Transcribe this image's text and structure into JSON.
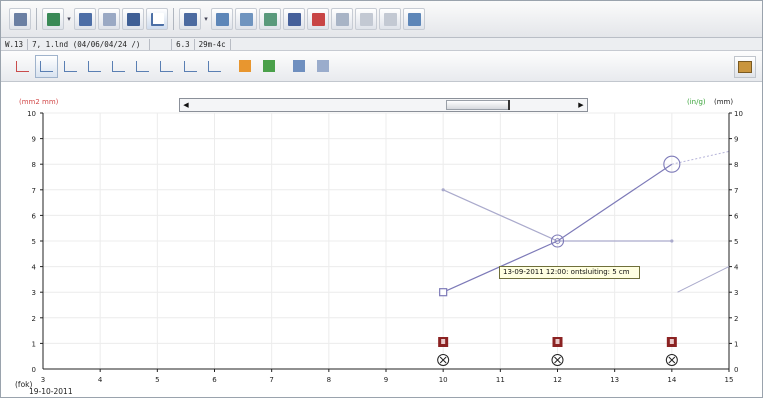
{
  "infobar": {
    "cells": [
      "W.13",
      "7, 1.lnd (04/06/04/24 /)",
      "",
      "6.3",
      "29m-4c"
    ]
  },
  "chart_data": {
    "type": "line",
    "left_axis_label": "(mm2 mm)",
    "right_axis_label_green": "(in/g)",
    "right_axis_label_black": "(mm)",
    "x_axis_label": "(fok)",
    "date_label": "19-10-2011",
    "x_ticks": [
      4,
      5,
      6,
      7,
      8,
      9,
      10,
      11,
      12,
      13,
      14,
      15
    ],
    "y_ticks": [
      1,
      2,
      3,
      4,
      5,
      6,
      7,
      8,
      9,
      10
    ],
    "xlim": [
      3,
      15
    ],
    "ylim": [
      0,
      10
    ],
    "series": [
      {
        "color": "#7d7ab8",
        "points": [
          [
            10,
            3
          ],
          [
            12,
            5
          ],
          [
            14,
            8
          ]
        ]
      },
      {
        "color": "#aaaacc",
        "points": [
          [
            10,
            7
          ],
          [
            12,
            5
          ],
          [
            14,
            5
          ]
        ]
      }
    ],
    "markers": {
      "square_at": [
        10,
        3
      ],
      "circles_at": [
        [
          12,
          5
        ],
        [
          14,
          8
        ]
      ],
      "event_x": [
        10,
        12,
        14
      ]
    },
    "tooltip": "13-09-2011 12:00: ontsluiting: 5 cm"
  },
  "colors": {
    "left_axis": "#d24b4b",
    "right_axis_green": "#3aa33a",
    "series_primary": "#7d7ab8",
    "series_secondary": "#aaaacc",
    "event_marker": "#8b2222"
  }
}
